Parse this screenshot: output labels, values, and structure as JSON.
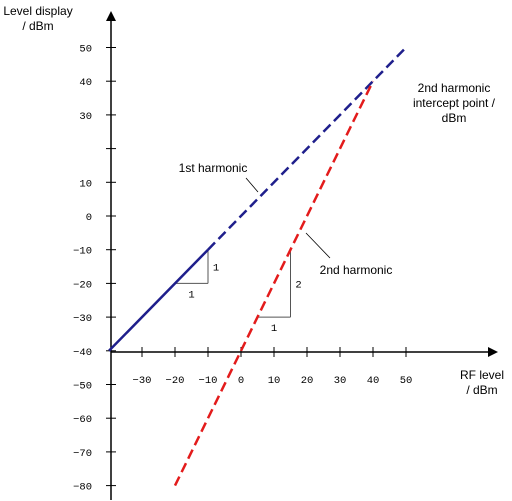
{
  "diagram": {
    "y_axis_label": [
      "Level display",
      "/ dBm"
    ],
    "x_axis_label": [
      "RF level",
      "/ dBm"
    ],
    "y_ticks": [
      {
        "value": 50,
        "label": "50"
      },
      {
        "value": 40,
        "label": "40"
      },
      {
        "value": 30,
        "label": "30"
      },
      {
        "value": 20,
        "label": ""
      },
      {
        "value": 10,
        "label": "10"
      },
      {
        "value": 0,
        "label": "0"
      },
      {
        "value": -10,
        "label": "−10"
      },
      {
        "value": -20,
        "label": "−20"
      },
      {
        "value": -30,
        "label": "−30"
      },
      {
        "value": -40,
        "label": "−40"
      },
      {
        "value": -50,
        "label": "−50"
      },
      {
        "value": -60,
        "label": "−60"
      },
      {
        "value": -70,
        "label": "−70"
      },
      {
        "value": -80,
        "label": "−80"
      }
    ],
    "x_ticks": [
      {
        "value": -30,
        "label": "−30"
      },
      {
        "value": -20,
        "label": "−20"
      },
      {
        "value": -10,
        "label": "−10"
      },
      {
        "value": 0,
        "label": "0"
      },
      {
        "value": 10,
        "label": "10"
      },
      {
        "value": 20,
        "label": "20"
      },
      {
        "value": 30,
        "label": "30"
      },
      {
        "value": 40,
        "label": "40"
      },
      {
        "value": 50,
        "label": "50"
      }
    ],
    "lines": [
      {
        "name": "1st harmonic",
        "color": "#1f1f8c",
        "points": [
          [
            -40,
            -40
          ],
          [
            -10,
            -10
          ]
        ],
        "dashed_points": [
          [
            -10,
            -10
          ],
          [
            50,
            50
          ]
        ]
      },
      {
        "name": "2nd harmonic",
        "color": "#e31b1b",
        "points": [
          [
            -20,
            -80
          ],
          [
            40,
            40
          ]
        ]
      }
    ],
    "labels": {
      "first_harmonic": "1st harmonic",
      "second_harmonic": "2nd harmonic",
      "intercept": [
        "2nd harmonic",
        "intercept point /",
        "dBm"
      ]
    },
    "slope_triangles": [
      {
        "run_label": "1",
        "rise_label": "1",
        "run": [
          -20,
          -10
        ],
        "rise": [
          -20,
          -10
        ]
      },
      {
        "run_label": "1",
        "rise_label": "2",
        "run": [
          5,
          15
        ],
        "rise": [
          -30,
          -10
        ]
      }
    ],
    "colors": {
      "axis": "#000000",
      "first_harmonic": "#1f1f8c",
      "second_harmonic": "#e31b1b",
      "triangle": "#555555"
    }
  }
}
